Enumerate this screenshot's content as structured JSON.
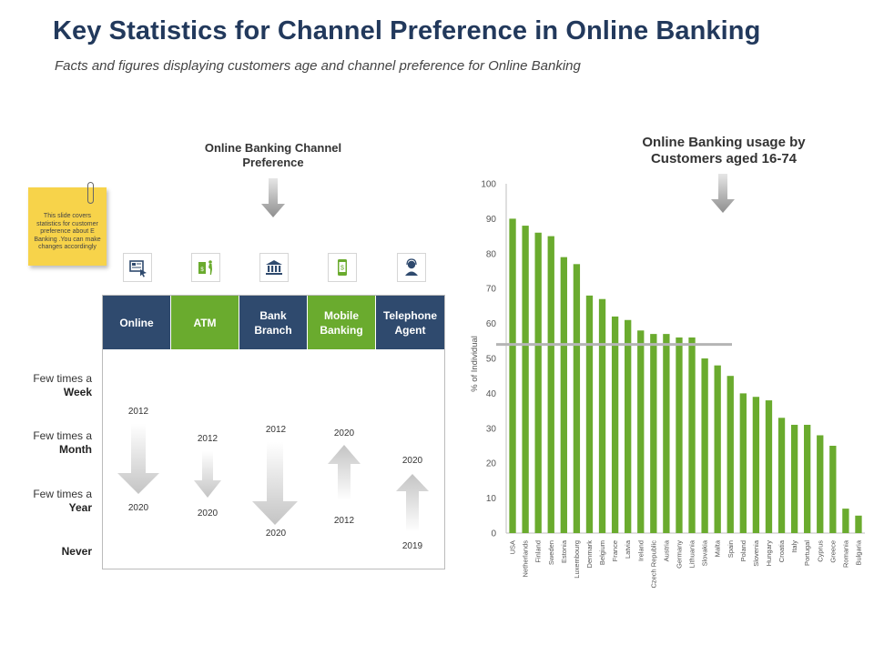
{
  "header": {
    "title": "Key Statistics for Channel Preference in Online Banking",
    "subtitle": "Facts and figures displaying customers age and channel preference for Online Banking"
  },
  "left_panel": {
    "heading": "Online Banking Channel Preference",
    "sticky_note": "This slide covers statistics for customer preference about E Banking .You can make changes accordingly",
    "channels": [
      {
        "label": "Online",
        "icon": "computer-cursor-icon",
        "color": "#2f4a6e",
        "from_year": "2012",
        "to_year": "2020",
        "direction": "down"
      },
      {
        "label": "ATM",
        "icon": "atm-cash-icon",
        "color": "#6aab2e",
        "from_year": "2012",
        "to_year": "2020",
        "direction": "down"
      },
      {
        "label": "Bank Branch",
        "icon": "bank-building-icon",
        "color": "#2f4a6e",
        "from_year": "2012",
        "to_year": "2020",
        "direction": "down"
      },
      {
        "label": "Mobile Banking",
        "icon": "mobile-money-icon",
        "color": "#6aab2e",
        "from_year": "2012",
        "to_year": "2020",
        "direction": "up"
      },
      {
        "label": "Telephone Agent",
        "icon": "call-agent-icon",
        "color": "#2f4a6e",
        "from_year": "2019",
        "to_year": "2020",
        "direction": "up"
      }
    ],
    "frequency_rows": [
      {
        "line1": "Few times a",
        "line2": "Week"
      },
      {
        "line1": "Few times a",
        "line2": "Month"
      },
      {
        "line1": "Few times a",
        "line2": "Year"
      },
      {
        "line1": "",
        "line2": "Never"
      }
    ]
  },
  "chart_data": {
    "type": "bar",
    "title": "Online Banking usage by Customers aged 16-74",
    "xlabel": "",
    "ylabel": "% of Individual",
    "ylim": [
      0,
      100
    ],
    "yticks": [
      0,
      10,
      20,
      30,
      40,
      50,
      60,
      70,
      80,
      90,
      100
    ],
    "grid": false,
    "bar_color": "#6aab2e",
    "reference_line": 54,
    "categories": [
      "USA",
      "Netherlands",
      "Finland",
      "Sweden",
      "Estonia",
      "Luxembourg",
      "Denmark",
      "Belgium",
      "France",
      "Latvia",
      "Ireland",
      "Czech Republic",
      "Austria",
      "Germany",
      "Lithuania",
      "Slovakia",
      "Malta",
      "Spain",
      "Poland",
      "Slovenia",
      "Hungary",
      "Croatia",
      "Italy",
      "Portugal",
      "Cyprus",
      "Greece",
      "Romania",
      "Bulgaria"
    ],
    "values": [
      90,
      88,
      86,
      85,
      79,
      77,
      68,
      67,
      62,
      61,
      58,
      57,
      57,
      56,
      56,
      50,
      48,
      45,
      40,
      39,
      38,
      33,
      31,
      31,
      28,
      25,
      7,
      5
    ]
  }
}
